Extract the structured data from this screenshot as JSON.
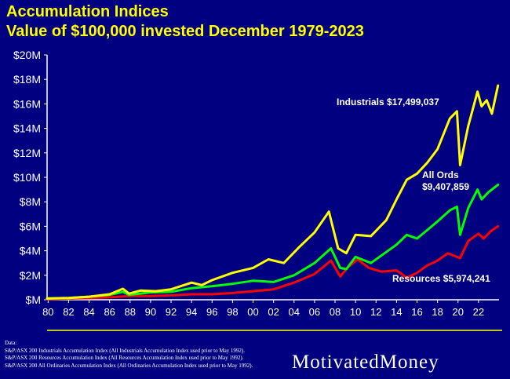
{
  "header": {
    "title_line1": "Accumulation Indices",
    "title_line2": "Value of $100,000 invested December 1979-2023"
  },
  "footnotes": {
    "heading": "Data:",
    "lines": [
      "S&P/ASX 200 Industrials Accumulation Index (All Industrials Accumulation Index used prior to May 1992).",
      "S&P/ASX 200 Resources Accumulation Index (All Resources Accumulation Index used prior to May 1992).",
      "S&P/ASX 200 All Ordinaries Accumulation Index (All Ordinaries Accumulation Index used prior to May 1992)."
    ]
  },
  "logo": {
    "text": "MotivatedMoney"
  },
  "colors": {
    "background": "#000080",
    "title": "#ffff00",
    "industrials": "#ffff00",
    "all_ords": "#00ff00",
    "resources": "#ff0000",
    "text": "#ffffff"
  },
  "chart_data": {
    "type": "line",
    "title": "",
    "xlabel": "",
    "ylabel": "",
    "xlim": [
      1979.9,
      2024.0
    ],
    "ylim": [
      0,
      20
    ],
    "y_unit": "millions of dollars",
    "grid": false,
    "x_tick_values": [
      1980,
      1982,
      1984,
      1986,
      1988,
      1990,
      1992,
      1994,
      1996,
      1998,
      2000,
      2002,
      2004,
      2006,
      2008,
      2010,
      2012,
      2014,
      2016,
      2018,
      2020,
      2022
    ],
    "x_tick_labels": [
      "80",
      "82",
      "84",
      "86",
      "88",
      "90",
      "92",
      "94",
      "96",
      "98",
      "00",
      "02",
      "04",
      "06",
      "08",
      "10",
      "12",
      "14",
      "16",
      "18",
      "20",
      "22"
    ],
    "y_tick_values": [
      0,
      2,
      4,
      6,
      8,
      10,
      12,
      14,
      16,
      18,
      20
    ],
    "y_tick_labels": [
      "$M",
      "$2M",
      "$4M",
      "$6M",
      "$8M",
      "$10M",
      "$12M",
      "$14M",
      "$16M",
      "$18M",
      "$20M"
    ],
    "series": [
      {
        "name": "Industrials",
        "color_key": "industrials",
        "label": "Industrials $17,499,037",
        "x": [
          1979.9,
          1982,
          1984,
          1986,
          1987.3,
          1987.9,
          1989,
          1990.5,
          1992,
          1994,
          1995,
          1996,
          1998,
          2000,
          2001.5,
          2003,
          2004.5,
          2006,
          2007.4,
          2008.3,
          2009.1,
          2010,
          2011.5,
          2013,
          2014,
          2015,
          2016,
          2017,
          2018,
          2019.2,
          2019.9,
          2020.2,
          2021,
          2021.9,
          2022.3,
          2022.8,
          2023.3,
          2023.9
        ],
        "y": [
          0.1,
          0.15,
          0.25,
          0.45,
          0.9,
          0.5,
          0.75,
          0.7,
          0.85,
          1.4,
          1.2,
          1.6,
          2.2,
          2.6,
          3.3,
          3.0,
          4.3,
          5.5,
          7.2,
          4.2,
          3.8,
          5.3,
          5.2,
          6.5,
          8.2,
          9.8,
          10.3,
          11.2,
          12.3,
          14.8,
          15.4,
          11.0,
          14.2,
          17.0,
          15.8,
          16.3,
          15.2,
          17.5
        ]
      },
      {
        "name": "All Ords",
        "color_key": "all_ords",
        "label_line1": "All Ords",
        "label_line2": "$9,407,859",
        "x": [
          1979.9,
          1982,
          1984,
          1986,
          1987.3,
          1987.9,
          1990,
          1992,
          1994,
          1996,
          1998,
          2000,
          2002,
          2004,
          2006,
          2007.6,
          2008.5,
          2009.1,
          2010,
          2011.5,
          2013,
          2014,
          2015,
          2016,
          2017,
          2018,
          2019.2,
          2019.9,
          2020.2,
          2021,
          2021.9,
          2022.3,
          2023,
          2023.9
        ],
        "y": [
          0.1,
          0.15,
          0.25,
          0.4,
          0.65,
          0.4,
          0.6,
          0.65,
          0.95,
          1.1,
          1.3,
          1.55,
          1.45,
          2.0,
          3.0,
          4.2,
          2.6,
          2.5,
          3.5,
          3.0,
          3.9,
          4.5,
          5.3,
          5.0,
          5.7,
          6.4,
          7.3,
          7.6,
          5.3,
          7.5,
          9.0,
          8.2,
          8.8,
          9.4
        ]
      },
      {
        "name": "Resources",
        "color_key": "resources",
        "label": "Resources $5,974,241",
        "x": [
          1979.9,
          1982,
          1984,
          1986,
          1988,
          1990,
          1992,
          1994,
          1996,
          1998,
          2000,
          2002,
          2004,
          2006,
          2007.6,
          2008.5,
          2009.2,
          2010.2,
          2011.3,
          2012.5,
          2014,
          2015,
          2016,
          2017,
          2018,
          2019,
          2020.2,
          2021,
          2022,
          2022.5,
          2023.2,
          2023.9
        ],
        "y": [
          0.05,
          0.1,
          0.15,
          0.2,
          0.3,
          0.3,
          0.35,
          0.45,
          0.45,
          0.55,
          0.7,
          0.85,
          1.4,
          2.1,
          3.2,
          1.9,
          2.6,
          3.3,
          2.6,
          2.3,
          2.4,
          1.8,
          2.2,
          2.8,
          3.2,
          3.8,
          3.4,
          4.8,
          5.4,
          5.0,
          5.6,
          6.0
        ]
      }
    ]
  }
}
